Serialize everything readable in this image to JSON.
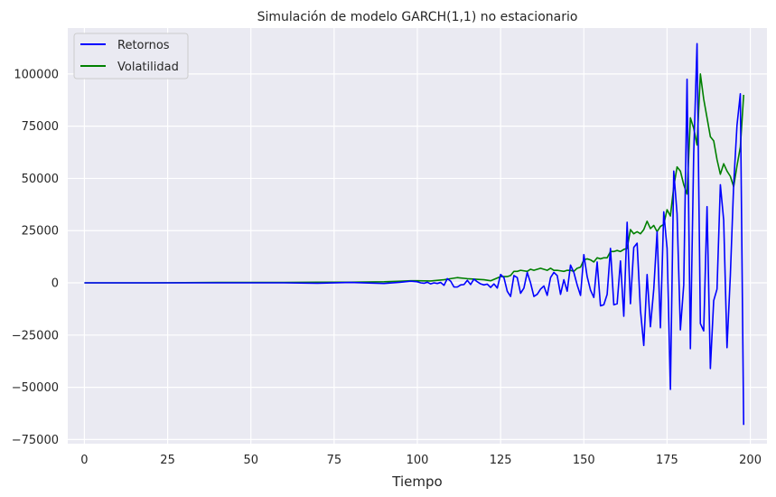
{
  "chart_data": {
    "type": "line",
    "title": "Simulación de modelo GARCH(1,1) no estacionario",
    "xlabel": "Tiempo",
    "ylabel": "",
    "xlim": [
      -5,
      205
    ],
    "ylim": [
      -77000,
      122000
    ],
    "x_ticks": [
      0,
      25,
      50,
      75,
      100,
      125,
      150,
      175,
      200
    ],
    "y_ticks": [
      -75000,
      -50000,
      -25000,
      0,
      25000,
      50000,
      75000,
      100000
    ],
    "grid": true,
    "legend_position": "upper-left",
    "colors": {
      "background": "#eaeaf2",
      "grid": "#ffffff",
      "text": "#262626"
    },
    "series": [
      {
        "name": "Retornos",
        "color": "#0000ff",
        "points": [
          [
            0,
            0
          ],
          [
            20,
            0
          ],
          [
            40,
            0
          ],
          [
            60,
            0
          ],
          [
            70,
            -200
          ],
          [
            80,
            200
          ],
          [
            90,
            -300
          ],
          [
            95,
            300
          ],
          [
            98,
            800
          ],
          [
            100,
            500
          ],
          [
            101,
            0
          ],
          [
            102,
            -200
          ],
          [
            103,
            300
          ],
          [
            104,
            -500
          ],
          [
            105,
            0
          ],
          [
            106,
            -300
          ],
          [
            107,
            200
          ],
          [
            108,
            -1200
          ],
          [
            109,
            2000
          ],
          [
            110,
            800
          ],
          [
            111,
            -2000
          ],
          [
            112,
            -2000
          ],
          [
            113,
            -1000
          ],
          [
            114,
            -800
          ],
          [
            115,
            1200
          ],
          [
            116,
            -800
          ],
          [
            117,
            1800
          ],
          [
            118,
            500
          ],
          [
            119,
            -500
          ],
          [
            120,
            -1000
          ],
          [
            121,
            -600
          ],
          [
            122,
            -2200
          ],
          [
            123,
            -500
          ],
          [
            124,
            -2500
          ],
          [
            125,
            4000
          ],
          [
            126,
            2500
          ],
          [
            127,
            -4000
          ],
          [
            128,
            -6500
          ],
          [
            129,
            3500
          ],
          [
            130,
            2500
          ],
          [
            131,
            -5000
          ],
          [
            132,
            -2500
          ],
          [
            133,
            5000
          ],
          [
            134,
            0
          ],
          [
            135,
            -6500
          ],
          [
            136,
            -5500
          ],
          [
            137,
            -3000
          ],
          [
            138,
            -1500
          ],
          [
            139,
            -6000
          ],
          [
            140,
            2500
          ],
          [
            141,
            5000
          ],
          [
            142,
            3500
          ],
          [
            143,
            -5500
          ],
          [
            144,
            1500
          ],
          [
            145,
            -4000
          ],
          [
            146,
            8500
          ],
          [
            147,
            5000
          ],
          [
            148,
            -1000
          ],
          [
            149,
            -6000
          ],
          [
            150,
            13500
          ],
          [
            151,
            3000
          ],
          [
            152,
            -3500
          ],
          [
            153,
            -7000
          ],
          [
            154,
            10000
          ],
          [
            155,
            -11000
          ],
          [
            156,
            -10500
          ],
          [
            157,
            -5500
          ],
          [
            158,
            16500
          ],
          [
            159,
            -10500
          ],
          [
            160,
            -10000
          ],
          [
            161,
            10500
          ],
          [
            162,
            -16000
          ],
          [
            163,
            29000
          ],
          [
            164,
            -10000
          ],
          [
            165,
            17000
          ],
          [
            166,
            19000
          ],
          [
            167,
            -13000
          ],
          [
            168,
            -30000
          ],
          [
            169,
            4000
          ],
          [
            170,
            -21000
          ],
          [
            171,
            -3000
          ],
          [
            172,
            24500
          ],
          [
            173,
            -21500
          ],
          [
            174,
            34000
          ],
          [
            175,
            16500
          ],
          [
            176,
            -51000
          ],
          [
            177,
            53500
          ],
          [
            178,
            33000
          ],
          [
            179,
            -22500
          ],
          [
            180,
            -1000
          ],
          [
            181,
            97500
          ],
          [
            182,
            -31500
          ],
          [
            183,
            62000
          ],
          [
            184,
            114500
          ],
          [
            185,
            -19500
          ],
          [
            186,
            -23000
          ],
          [
            187,
            36500
          ],
          [
            188,
            -41000
          ],
          [
            189,
            -8500
          ],
          [
            190,
            -3000
          ],
          [
            191,
            47000
          ],
          [
            192,
            30000
          ],
          [
            193,
            -31000
          ],
          [
            194,
            3500
          ],
          [
            195,
            47000
          ],
          [
            196,
            75500
          ],
          [
            197,
            90500
          ],
          [
            198,
            -68000
          ]
        ]
      },
      {
        "name": "Volatilidad",
        "color": "#008000",
        "points": [
          [
            0,
            0
          ],
          [
            20,
            0
          ],
          [
            40,
            200
          ],
          [
            60,
            200
          ],
          [
            70,
            300
          ],
          [
            80,
            300
          ],
          [
            90,
            500
          ],
          [
            95,
            800
          ],
          [
            98,
            1000
          ],
          [
            100,
            1000
          ],
          [
            104,
            900
          ],
          [
            108,
            1500
          ],
          [
            110,
            2000
          ],
          [
            112,
            2500
          ],
          [
            115,
            2000
          ],
          [
            120,
            1500
          ],
          [
            122,
            1000
          ],
          [
            125,
            3000
          ],
          [
            127,
            3000
          ],
          [
            128,
            3500
          ],
          [
            129,
            5500
          ],
          [
            130,
            5500
          ],
          [
            131,
            6000
          ],
          [
            133,
            5500
          ],
          [
            134,
            6500
          ],
          [
            135,
            6000
          ],
          [
            136,
            6500
          ],
          [
            137,
            7000
          ],
          [
            138,
            6500
          ],
          [
            139,
            6000
          ],
          [
            140,
            7000
          ],
          [
            141,
            6000
          ],
          [
            142,
            6000
          ],
          [
            144,
            5500
          ],
          [
            145,
            6000
          ],
          [
            146,
            6000
          ],
          [
            147,
            5500
          ],
          [
            148,
            7000
          ],
          [
            149,
            7500
          ],
          [
            150,
            11000
          ],
          [
            151,
            11500
          ],
          [
            152,
            11000
          ],
          [
            153,
            10000
          ],
          [
            154,
            12000
          ],
          [
            155,
            11500
          ],
          [
            156,
            12000
          ],
          [
            157,
            12000
          ],
          [
            158,
            15000
          ],
          [
            159,
            15000
          ],
          [
            160,
            15500
          ],
          [
            161,
            15000
          ],
          [
            162,
            16000
          ],
          [
            163,
            16500
          ],
          [
            164,
            25500
          ],
          [
            165,
            23500
          ],
          [
            166,
            24500
          ],
          [
            167,
            23500
          ],
          [
            168,
            25500
          ],
          [
            169,
            29500
          ],
          [
            170,
            26000
          ],
          [
            171,
            27500
          ],
          [
            172,
            24500
          ],
          [
            173,
            27000
          ],
          [
            174,
            28000
          ],
          [
            175,
            35000
          ],
          [
            176,
            32000
          ],
          [
            177,
            46000
          ],
          [
            178,
            55500
          ],
          [
            179,
            53500
          ],
          [
            180,
            47000
          ],
          [
            181,
            42500
          ],
          [
            182,
            79000
          ],
          [
            183,
            74000
          ],
          [
            184,
            66000
          ],
          [
            185,
            100000
          ],
          [
            186,
            88000
          ],
          [
            187,
            79000
          ],
          [
            188,
            70000
          ],
          [
            189,
            68000
          ],
          [
            190,
            59000
          ],
          [
            191,
            52000
          ],
          [
            192,
            57000
          ],
          [
            193,
            53500
          ],
          [
            194,
            51000
          ],
          [
            195,
            46000
          ],
          [
            196,
            56000
          ],
          [
            197,
            65000
          ],
          [
            198,
            90000
          ]
        ]
      }
    ]
  }
}
